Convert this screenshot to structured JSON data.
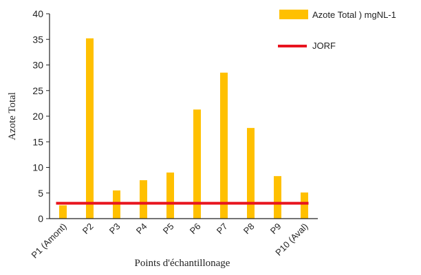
{
  "chart_data": {
    "type": "bar",
    "xlabel": "Points d'échantillonage",
    "ylabel": "Azote Total",
    "ylim": [
      0,
      40
    ],
    "yticks": [
      0,
      5,
      10,
      15,
      20,
      25,
      30,
      35,
      40
    ],
    "categories": [
      "P1 (Amont)",
      "P2",
      "P3",
      "P4",
      "P5",
      "P6",
      "P7",
      "P8",
      "P9",
      "P10 (Aval)"
    ],
    "series": [
      {
        "name": "Azote Total ) mgNL-1",
        "type": "bar",
        "color": "#FFC000",
        "values": [
          2.6,
          35.2,
          5.5,
          7.5,
          9.0,
          21.3,
          28.5,
          17.7,
          8.3,
          5.1
        ]
      }
    ],
    "reference_lines": [
      {
        "name": "JORF",
        "type": "line",
        "color": "#E8141E",
        "value": 3
      }
    ],
    "legend": {
      "placement": "top-right"
    },
    "grid": false
  }
}
